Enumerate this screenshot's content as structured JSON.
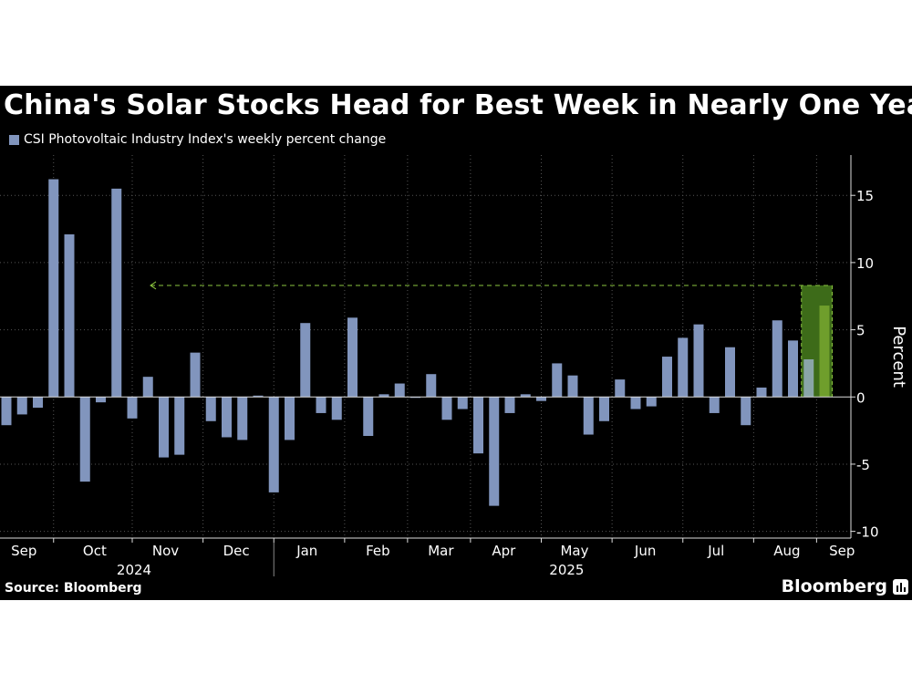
{
  "title": "China's Solar Stocks Head for Best Week in Nearly One Year",
  "source": "Source: Bloomberg",
  "brand": "Bloomberg",
  "colors": {
    "bar": "#8195bd",
    "highlight_fill": "#3d6b19",
    "highlight_bar": "#6f9e2c",
    "highlight_line": "#8cc63f",
    "grid": "#555555",
    "text": "#ffffff"
  },
  "chart_data": {
    "type": "bar",
    "series": [
      {
        "name": "CSI Photovoltaic Industry Index's weekly percent change",
        "values": [
          -2.1,
          -1.3,
          -0.8,
          16.2,
          12.1,
          -6.3,
          -0.4,
          15.5,
          -1.6,
          1.5,
          -4.5,
          -4.3,
          3.3,
          -1.8,
          -3.0,
          -3.2,
          0.1,
          -7.1,
          -3.2,
          5.5,
          -1.2,
          -1.7,
          5.9,
          -2.9,
          0.2,
          1.0,
          0.0,
          1.7,
          -1.7,
          -0.9,
          -4.2,
          -8.1,
          -1.2,
          0.2,
          -0.3,
          2.5,
          1.6,
          -2.8,
          -1.8,
          1.3,
          -0.9,
          -0.7,
          3.0,
          4.4,
          5.4,
          -1.2,
          3.7,
          -2.1,
          0.7,
          5.7,
          4.2,
          2.8,
          6.8
        ]
      }
    ],
    "highlight_index": 52,
    "reference_value": 8.3,
    "x_tick_labels": [
      "Sep",
      "Oct",
      "Nov",
      "Dec",
      "Jan",
      "Feb",
      "Mar",
      "Apr",
      "May",
      "Jun",
      "Jul",
      "Aug",
      "Sep"
    ],
    "x_tick_bar_index": [
      1,
      5.5,
      10,
      14.5,
      19,
      23.5,
      27.5,
      31.5,
      36,
      40.5,
      45,
      49.5,
      53
    ],
    "month_boundaries_bar_index": [
      3,
      8,
      12.5,
      17,
      21.5,
      25.5,
      29.5,
      34,
      38.5,
      43,
      47.5,
      51.5
    ],
    "year_labels": [
      "2024",
      "2025"
    ],
    "year_label_bar_index": [
      8,
      35.5
    ],
    "year_boundary_bar_index": 17,
    "ylabel": "Percent",
    "y_ticks": [
      15,
      10,
      5,
      0,
      -5,
      -10
    ],
    "ylim": [
      -10.5,
      18
    ],
    "grid": true
  }
}
